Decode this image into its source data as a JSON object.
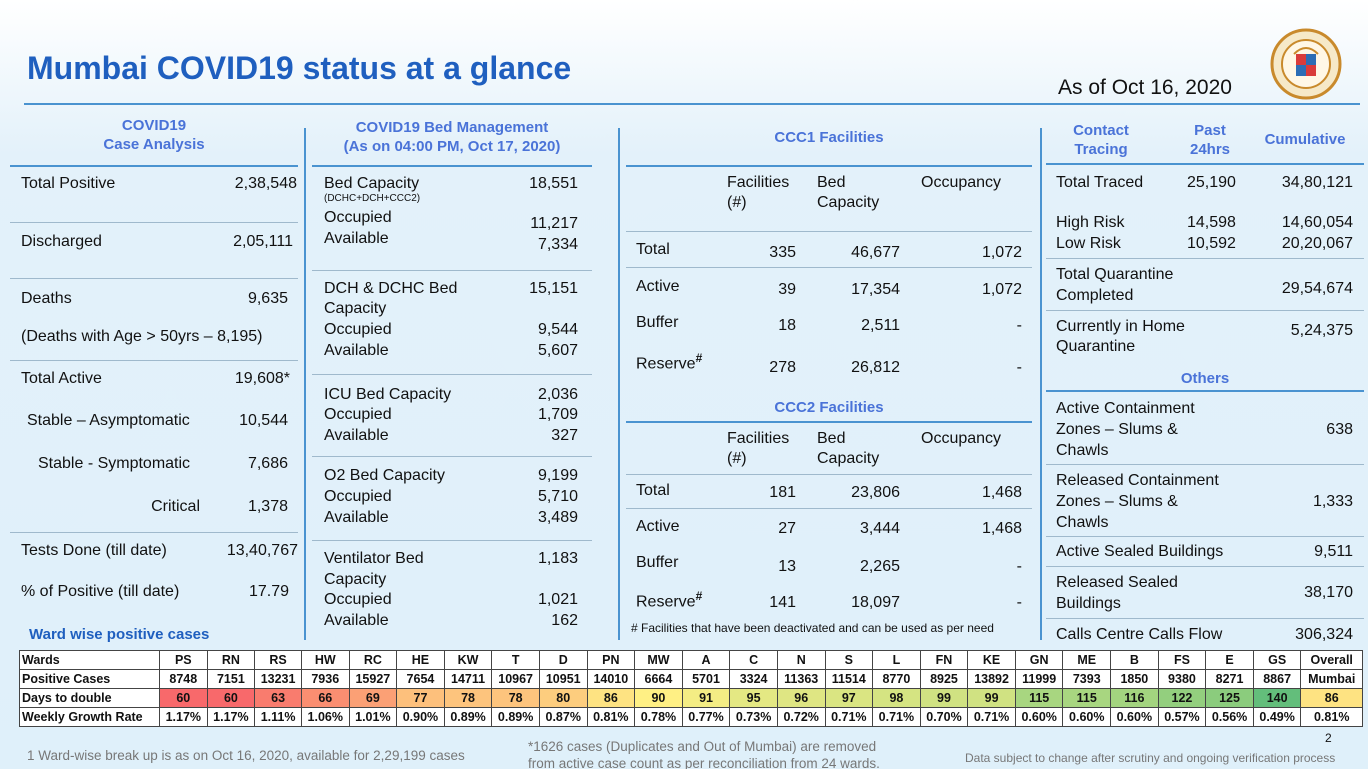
{
  "title": "Mumbai COVID19 status at a glance",
  "as_of": "As of Oct 16, 2020",
  "case_analysis": {
    "header_line1": "COVID19",
    "header_line2": "Case Analysis",
    "total_positive_label": "Total Positive",
    "total_positive": "2,38,548",
    "discharged_label": "Discharged",
    "discharged": "2,05,111",
    "deaths_label": "Deaths",
    "deaths": "9,635",
    "deaths_age_note": "(Deaths with Age > 50yrs – 8,195)",
    "total_active_label": "Total Active",
    "total_active": "19,608*",
    "stable_asym_label": "Stable – Asymptomatic",
    "stable_asym": "10,544",
    "stable_sym_label": "Stable - Symptomatic",
    "stable_sym": "7,686",
    "critical_label": "Critical",
    "critical": "1,378",
    "tests_label": "Tests Done (till date)",
    "tests": "13,40,767",
    "pct_positive_label": "% of Positive (till date)",
    "pct_positive": "17.79"
  },
  "bed_mgmt": {
    "header_line1": "COVID19 Bed Management",
    "header_line2": "(As on 04:00 PM, Oct 17, 2020)",
    "occupied_label": "Occupied",
    "available_label": "Available",
    "bed_capacity_label": "Bed Capacity",
    "bed_capacity_sub": "(DCHC+DCH+CCC2)",
    "bed_capacity": "18,551",
    "bed_occupied": "11,217",
    "bed_available": "7,334",
    "dch_label1": "DCH & DCHC Bed",
    "dch_label2": "Capacity",
    "dch_capacity": "15,151",
    "dch_occupied": "9,544",
    "dch_available": "5,607",
    "icu_label": "ICU Bed Capacity",
    "icu_capacity": "2,036",
    "icu_occupied": "1,709",
    "icu_available": "327",
    "o2_label": "O2 Bed Capacity",
    "o2_capacity": "9,199",
    "o2_occupied": "5,710",
    "o2_available": "3,489",
    "vent_label1": "Ventilator Bed",
    "vent_label2": "Capacity",
    "vent_capacity": "1,183",
    "vent_occupied": "1,021",
    "vent_available": "162"
  },
  "ccc": {
    "col_fac1": "Facilities",
    "col_fac2": "(#)",
    "col_bed1": "Bed",
    "col_bed2": "Capacity",
    "col_occ": "Occupancy",
    "total_label": "Total",
    "active_label": "Active",
    "buffer_label": "Buffer",
    "reserve_label": "Reserve",
    "hash": "#",
    "ccc1_header": "CCC1 Facilities",
    "ccc1": {
      "total": [
        "335",
        "46,677",
        "1,072"
      ],
      "active": [
        "39",
        "17,354",
        "1,072"
      ],
      "buffer": [
        "18",
        "2,511",
        "-"
      ],
      "reserve": [
        "278",
        "26,812",
        "-"
      ]
    },
    "ccc2_header": "CCC2 Facilities",
    "ccc2": {
      "total": [
        "181",
        "23,806",
        "1,468"
      ],
      "active": [
        "27",
        "3,444",
        "1,468"
      ],
      "buffer": [
        "13",
        "2,265",
        "-"
      ],
      "reserve": [
        "141",
        "18,097",
        "-"
      ]
    },
    "footnote": "# Facilities that have been deactivated and can be used as per need"
  },
  "contact": {
    "hdr_ct1": "Contact",
    "hdr_ct2": "Tracing",
    "hdr_past1": "Past",
    "hdr_past2": "24hrs",
    "hdr_cum": "Cumulative",
    "total_traced_label": "Total Traced",
    "total_traced_24": "25,190",
    "total_traced_cum": "34,80,121",
    "high_risk_label": "High Risk",
    "high_risk_24": "14,598",
    "high_risk_cum": "14,60,054",
    "low_risk_label": "Low Risk",
    "low_risk_24": "10,592",
    "low_risk_cum": "20,20,067",
    "tqc_label1": "Total Quarantine",
    "tqc_label2": "Completed",
    "tqc": "29,54,674",
    "home_label1": "Currently in Home",
    "home_label2": "Quarantine",
    "home": "5,24,375",
    "others_header": "Others",
    "acz_label1": "Active Containment",
    "acz_label2": "Zones – Slums &",
    "acz_label3": "Chawls",
    "acz": "638",
    "rcz_label1": "Released Containment",
    "rcz_label2": "Zones – Slums &",
    "rcz_label3": "Chawls",
    "rcz": "1,333",
    "asb_label": "Active Sealed Buildings",
    "asb": "9,511",
    "rsb_label1": "Released Sealed",
    "rsb_label2": "Buildings",
    "rsb": "38,170",
    "calls_label": "Calls Centre Calls Flow",
    "calls": "306,324"
  },
  "ward_title": "Ward wise positive cases",
  "wards_table": {
    "row_labels": [
      "Wards",
      "Positive Cases",
      "Days to double",
      "Weekly Growth Rate"
    ],
    "wards": [
      "PS",
      "RN",
      "RS",
      "HW",
      "RC",
      "HE",
      "KW",
      "T",
      "D",
      "PN",
      "MW",
      "A",
      "C",
      "N",
      "S",
      "L",
      "FN",
      "KE",
      "GN",
      "ME",
      "B",
      "FS",
      "E",
      "GS"
    ],
    "positive": [
      "8748",
      "7151",
      "13231",
      "7936",
      "15927",
      "7654",
      "14711",
      "10967",
      "10951",
      "14010",
      "6664",
      "5701",
      "3324",
      "11363",
      "11514",
      "8770",
      "8925",
      "13892",
      "11999",
      "7393",
      "1850",
      "9380",
      "8271",
      "8867"
    ],
    "days_to_double": [
      60,
      60,
      63,
      66,
      69,
      77,
      78,
      78,
      80,
      86,
      90,
      91,
      95,
      96,
      97,
      98,
      99,
      99,
      115,
      115,
      116,
      122,
      125,
      140
    ],
    "growth": [
      "1.17%",
      "1.17%",
      "1.11%",
      "1.06%",
      "1.01%",
      "0.90%",
      "0.89%",
      "0.89%",
      "0.87%",
      "0.81%",
      "0.78%",
      "0.77%",
      "0.73%",
      "0.72%",
      "0.71%",
      "0.71%",
      "0.70%",
      "0.71%",
      "0.60%",
      "0.60%",
      "0.60%",
      "0.57%",
      "0.56%",
      "0.49%"
    ],
    "overall_label1": "Overall",
    "overall_label2": "Mumbai",
    "overall_days": "86",
    "overall_growth": "0.81%",
    "colors": [
      "#f8696b",
      "#f8696b",
      "#f97c6e",
      "#fa8e71",
      "#fba075",
      "#fdc07c",
      "#fdc47d",
      "#fdc47d",
      "#fdcd7e",
      "#fee382",
      "#fff084",
      "#f4ed84",
      "#e4e883",
      "#dfe683",
      "#dae582",
      "#d5e482",
      "#d0e282",
      "#d0e282",
      "#a8d680",
      "#a8d680",
      "#a3d47f",
      "#93cf7e",
      "#8bcc7d",
      "#63be7b"
    ],
    "overall_color": "#fee382"
  },
  "page_number": "2",
  "foot_left": "1 Ward-wise break up is as on Oct 16, 2020, available for 2,29,199 cases",
  "foot_mid1": "*1626 cases (Duplicates and Out of Mumbai) are removed",
  "foot_mid2": "from active case count as per reconciliation from 24 wards.",
  "foot_right": "Data subject to change after scrutiny and ongoing verification process"
}
